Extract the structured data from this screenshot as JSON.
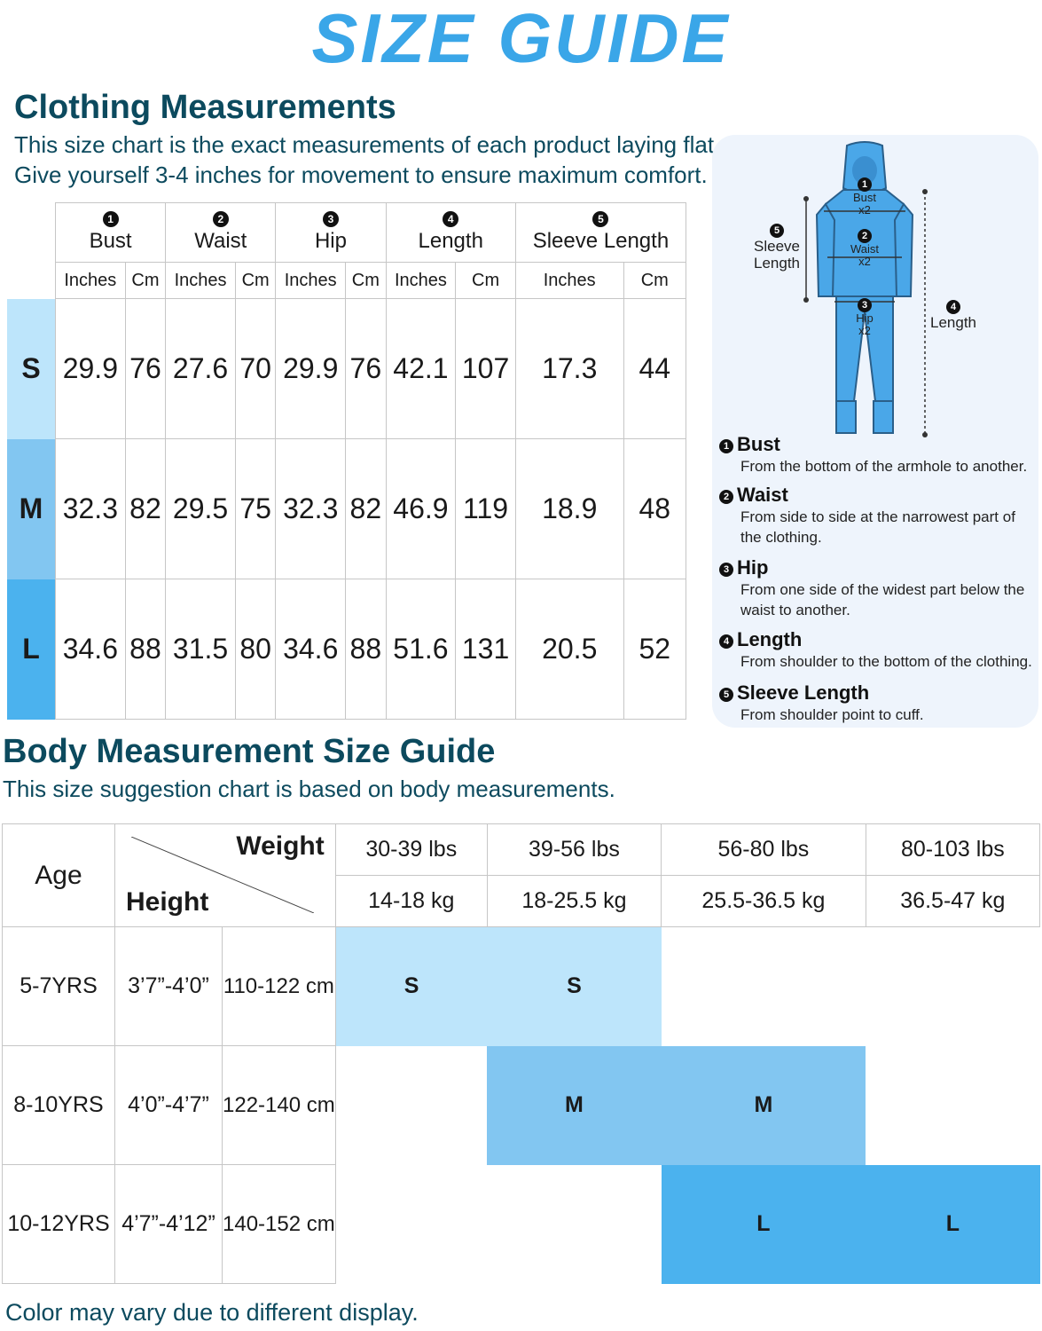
{
  "banner": "SIZE GUIDE",
  "clothing": {
    "title": "Clothing Measurements",
    "desc1": "This size chart is the exact measurements of each product laying flat.",
    "desc2": "Give yourself 3-4 inches for movement to ensure maximum comfort.",
    "columns": [
      {
        "num": "1",
        "name": "Bust"
      },
      {
        "num": "2",
        "name": "Waist"
      },
      {
        "num": "3",
        "name": "Hip"
      },
      {
        "num": "4",
        "name": "Length"
      },
      {
        "num": "5",
        "name": "Sleeve Length"
      }
    ],
    "units": [
      "Inches",
      "Cm"
    ],
    "rows": [
      {
        "size": "S",
        "values": [
          "29.9",
          "76",
          "27.6",
          "70",
          "29.9",
          "76",
          "42.1",
          "107",
          "17.3",
          "44"
        ]
      },
      {
        "size": "M",
        "values": [
          "32.3",
          "82",
          "29.5",
          "75",
          "32.3",
          "82",
          "46.9",
          "119",
          "18.9",
          "48"
        ]
      },
      {
        "size": "L",
        "values": [
          "34.6",
          "88",
          "31.5",
          "80",
          "34.6",
          "88",
          "51.6",
          "131",
          "20.5",
          "52"
        ]
      }
    ]
  },
  "diagram": {
    "bust": "Bust",
    "waist": "Waist",
    "hip": "Hip",
    "x2": "x2",
    "sleeve1": "Sleeve",
    "sleeve2": "Length",
    "length": "Length",
    "definitions": [
      {
        "num": "1",
        "title": "Bust",
        "text": "From the bottom of the armhole to another."
      },
      {
        "num": "2",
        "title": "Waist",
        "text": "From side to side at the narrowest part of the clothing."
      },
      {
        "num": "3",
        "title": "Hip",
        "text": "From one side of the widest part below the waist to another."
      },
      {
        "num": "4",
        "title": "Length",
        "text": "From shoulder to the bottom of the clothing."
      },
      {
        "num": "5",
        "title": "Sleeve Length",
        "text": "From shoulder point to cuff."
      }
    ]
  },
  "body": {
    "title": "Body Measurement Size Guide",
    "desc": "This size suggestion chart is based on body measurements.",
    "age_label": "Age",
    "weight_label": "Weight",
    "height_label": "Height",
    "weights_lbs": [
      "30-39 lbs",
      "39-56 lbs",
      "56-80 lbs",
      "80-103 lbs"
    ],
    "weights_kg": [
      "14-18 kg",
      "18-25.5 kg",
      "25.5-36.5 kg",
      "36.5-47 kg"
    ],
    "rows": [
      {
        "age": "5-7YRS",
        "height_ft": "3’7”-4’0”",
        "height_cm": "110-122 cm",
        "cells": [
          "S",
          "S",
          "",
          ""
        ]
      },
      {
        "age": "8-10YRS",
        "height_ft": "4’0”-4’7”",
        "height_cm": "122-140 cm",
        "cells": [
          "",
          "M",
          "M",
          ""
        ]
      },
      {
        "age": "10-12YRS",
        "height_ft": "4’7”-4’12”",
        "height_cm": "140-152 cm",
        "cells": [
          "",
          "",
          "L",
          "L"
        ]
      }
    ]
  },
  "footer": "Color may vary due to different display.",
  "colors": {
    "small": "#bde5fb",
    "medium": "#82c6f1",
    "large": "#4bb2ee",
    "title": "#0c4a5e",
    "banner": "#3aa6e8"
  }
}
